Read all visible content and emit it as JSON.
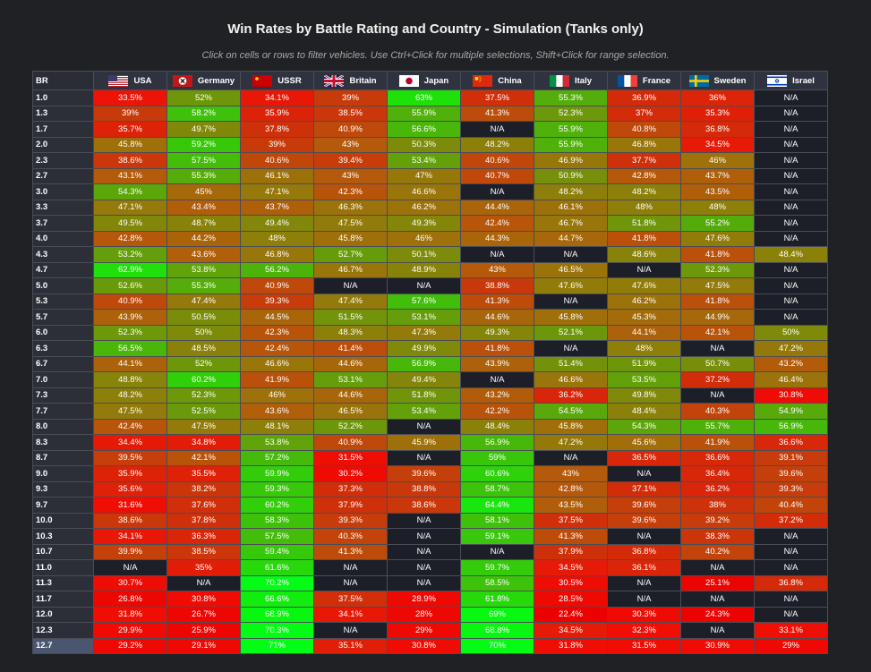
{
  "title": "Win Rates by Battle Rating and Country - Simulation (Tanks only)",
  "subtitle": "Click on cells or rows to filter vehicles. Use Ctrl+Click for multiple selections, Shift+Click for range selection.",
  "br_header": "BR",
  "countries": [
    {
      "name": "USA",
      "flag_icon": "usa-flag-icon"
    },
    {
      "name": "Germany",
      "flag_icon": "germany-flag-icon"
    },
    {
      "name": "USSR",
      "flag_icon": "ussr-flag-icon"
    },
    {
      "name": "Britain",
      "flag_icon": "britain-flag-icon"
    },
    {
      "name": "Japan",
      "flag_icon": "japan-flag-icon"
    },
    {
      "name": "China",
      "flag_icon": "china-flag-icon"
    },
    {
      "name": "Italy",
      "flag_icon": "italy-flag-icon"
    },
    {
      "name": "France",
      "flag_icon": "france-flag-icon"
    },
    {
      "name": "Sweden",
      "flag_icon": "sweden-flag-icon"
    },
    {
      "name": "Israel",
      "flag_icon": "israel-flag-icon"
    }
  ],
  "na_text": "N/A",
  "selected_row": "12.7",
  "rows": [
    {
      "br": "1.0",
      "values": [
        33.5,
        52,
        34.1,
        39,
        63,
        37.5,
        55.3,
        36.9,
        36,
        null
      ]
    },
    {
      "br": "1.3",
      "values": [
        39,
        58.2,
        35.9,
        38.5,
        55.9,
        41.3,
        52.3,
        37,
        35.3,
        null
      ]
    },
    {
      "br": "1.7",
      "values": [
        35.7,
        49.7,
        37.8,
        40.9,
        56.6,
        null,
        55.9,
        40.8,
        36.8,
        null
      ]
    },
    {
      "br": "2.0",
      "values": [
        45.8,
        59.2,
        39,
        43,
        50.3,
        48.2,
        55.9,
        46.8,
        34.5,
        null
      ]
    },
    {
      "br": "2.3",
      "values": [
        38.6,
        57.5,
        40.6,
        39.4,
        53.4,
        40.6,
        46.9,
        37.7,
        46,
        null
      ]
    },
    {
      "br": "2.7",
      "values": [
        43.1,
        55.3,
        46.1,
        43,
        47,
        40.7,
        50.9,
        42.8,
        43.7,
        null
      ]
    },
    {
      "br": "3.0",
      "values": [
        54.3,
        45,
        47.1,
        42.3,
        46.6,
        null,
        48.2,
        48.2,
        43.5,
        null
      ]
    },
    {
      "br": "3.3",
      "values": [
        47.1,
        43.4,
        43.7,
        46.3,
        46.2,
        44.4,
        46.1,
        48,
        48,
        null
      ]
    },
    {
      "br": "3.7",
      "values": [
        49.5,
        48.7,
        49.4,
        47.5,
        49.3,
        42.4,
        46.7,
        51.8,
        55.2,
        null
      ]
    },
    {
      "br": "4.0",
      "values": [
        42.8,
        44.2,
        48,
        45.8,
        46,
        44.3,
        44.7,
        41.8,
        47.6,
        null
      ]
    },
    {
      "br": "4.3",
      "values": [
        53.2,
        43.6,
        46.8,
        52.7,
        50.1,
        null,
        null,
        48.6,
        41.8,
        48.4
      ]
    },
    {
      "br": "4.7",
      "values": [
        62.9,
        53.8,
        56.2,
        46.7,
        48.9,
        43,
        46.5,
        null,
        52.3,
        null
      ]
    },
    {
      "br": "5.0",
      "values": [
        52.6,
        55.3,
        40.9,
        null,
        null,
        38.8,
        47.6,
        47.6,
        47.5,
        null
      ]
    },
    {
      "br": "5.3",
      "values": [
        40.9,
        47.4,
        39.3,
        47.4,
        57.6,
        41.3,
        null,
        46.2,
        41.8,
        null
      ]
    },
    {
      "br": "5.7",
      "values": [
        43.9,
        50.5,
        44.5,
        51.5,
        53.1,
        44.6,
        45.8,
        45.3,
        44.9,
        null
      ]
    },
    {
      "br": "6.0",
      "values": [
        52.3,
        50,
        42.3,
        48.3,
        47.3,
        49.3,
        52.1,
        44.1,
        42.1,
        50
      ]
    },
    {
      "br": "6.3",
      "values": [
        56.5,
        48.5,
        42.4,
        41.4,
        49.9,
        41.8,
        null,
        48,
        null,
        47.2
      ]
    },
    {
      "br": "6.7",
      "values": [
        44.1,
        52,
        46.6,
        44.6,
        56.9,
        43.9,
        51.4,
        51.9,
        50.7,
        43.2
      ]
    },
    {
      "br": "7.0",
      "values": [
        48.8,
        60.2,
        41.9,
        53.1,
        49.4,
        null,
        46.6,
        53.5,
        37.2,
        46.4
      ]
    },
    {
      "br": "7.3",
      "values": [
        48.2,
        52.3,
        46,
        44.6,
        51.8,
        43.2,
        36.2,
        49.8,
        null,
        30.8
      ]
    },
    {
      "br": "7.7",
      "values": [
        47.5,
        52.5,
        43.6,
        46.5,
        53.4,
        42.2,
        54.5,
        48.4,
        40.3,
        54.9
      ]
    },
    {
      "br": "8.0",
      "values": [
        42.4,
        47.5,
        48.1,
        52.2,
        null,
        48.4,
        45.8,
        54.3,
        55.7,
        56.9
      ]
    },
    {
      "br": "8.3",
      "values": [
        34.4,
        34.8,
        53.8,
        40.9,
        45.9,
        56.9,
        47.2,
        45.6,
        41.9,
        36.6
      ]
    },
    {
      "br": "8.7",
      "values": [
        39.5,
        42.1,
        57.2,
        31.5,
        null,
        59,
        null,
        36.5,
        36.6,
        39.1
      ]
    },
    {
      "br": "9.0",
      "values": [
        35.9,
        35.5,
        59.9,
        30.2,
        39.6,
        60.6,
        43,
        null,
        36.4,
        39.6
      ]
    },
    {
      "br": "9.3",
      "values": [
        35.6,
        38.2,
        59.3,
        37.3,
        38.8,
        58.7,
        42.8,
        37.1,
        36.2,
        39.3
      ]
    },
    {
      "br": "9.7",
      "values": [
        31.6,
        37.6,
        60.2,
        37.9,
        38.6,
        64.4,
        43.5,
        39.6,
        38,
        40.4
      ]
    },
    {
      "br": "10.0",
      "values": [
        38.6,
        37.8,
        58.3,
        39.3,
        null,
        58.1,
        37.5,
        39.6,
        39.2,
        37.2
      ]
    },
    {
      "br": "10.3",
      "values": [
        34.1,
        36.3,
        57.5,
        40.3,
        null,
        59.1,
        41.3,
        null,
        38.3,
        null
      ]
    },
    {
      "br": "10.7",
      "values": [
        39.9,
        38.5,
        59.4,
        41.3,
        null,
        null,
        37.9,
        36.8,
        40.2,
        null
      ]
    },
    {
      "br": "11.0",
      "values": [
        null,
        35,
        61.6,
        null,
        null,
        59.7,
        34.5,
        36.1,
        null,
        null
      ]
    },
    {
      "br": "11.3",
      "values": [
        30.7,
        null,
        70.2,
        null,
        null,
        58.5,
        30.5,
        null,
        25.1,
        36.8
      ]
    },
    {
      "br": "11.7",
      "values": [
        26.8,
        30.8,
        66.6,
        37.5,
        28.9,
        61.8,
        28.5,
        null,
        null,
        null
      ]
    },
    {
      "br": "12.0",
      "values": [
        31.8,
        26.7,
        68.9,
        34.1,
        28,
        69,
        22.4,
        30.3,
        24.3,
        null
      ]
    },
    {
      "br": "12.3",
      "values": [
        29.9,
        25.9,
        70.3,
        null,
        29,
        68.8,
        34.5,
        32.3,
        null,
        33.1
      ]
    },
    {
      "br": "12.7",
      "values": [
        29.2,
        29.1,
        71,
        35.1,
        30.8,
        70,
        31.8,
        31.5,
        30.9,
        29
      ]
    }
  ]
}
